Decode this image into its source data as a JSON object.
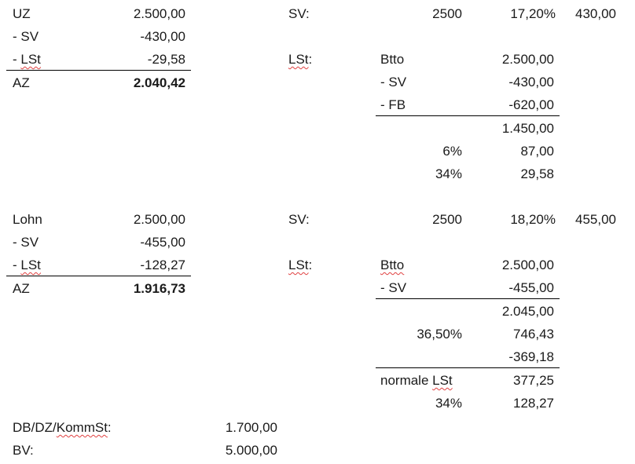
{
  "block1": {
    "left": {
      "rows": [
        {
          "label": "UZ",
          "value": "2.500,00"
        },
        {
          "label": "- SV",
          "value": "-430,00"
        },
        {
          "label": "- LSt",
          "value": "-29,58"
        },
        {
          "label": "AZ",
          "value": "2.040,42"
        }
      ]
    },
    "sv": {
      "label": "SV:",
      "base": "2500",
      "rate": "17,20%",
      "amount": "430,00"
    },
    "lst": {
      "label": "LSt:",
      "rows": [
        {
          "label": "Btto",
          "value": "2.500,00"
        },
        {
          "label": "- SV",
          "value": "-430,00"
        },
        {
          "label": "- FB",
          "value": "-620,00"
        },
        {
          "label": "",
          "value": "1.450,00"
        },
        {
          "label": "6%",
          "value": "87,00"
        },
        {
          "label": "34%",
          "value": "29,58"
        }
      ]
    }
  },
  "block2": {
    "left": {
      "rows": [
        {
          "label": "Lohn",
          "value": "2.500,00"
        },
        {
          "label": "- SV",
          "value": "-455,00"
        },
        {
          "label": "- LSt",
          "value": "-128,27"
        },
        {
          "label": "AZ",
          "value": "1.916,73"
        }
      ]
    },
    "sv": {
      "label": "SV:",
      "base": "2500",
      "rate": "18,20%",
      "amount": "455,00"
    },
    "lst": {
      "label": "LSt:",
      "rows": [
        {
          "label": "Btto",
          "value": "2.500,00"
        },
        {
          "label": "- SV",
          "value": "-455,00"
        },
        {
          "label": "",
          "value": "2.045,00"
        },
        {
          "label": "36,50%",
          "value": "746,43"
        },
        {
          "label": "",
          "value": "-369,18"
        },
        {
          "label": "normale LSt",
          "value": "377,25"
        },
        {
          "label": "34%",
          "value": "128,27"
        }
      ]
    }
  },
  "footer": {
    "rows": [
      {
        "label": "DB/DZ/KommSt:",
        "value": "1.700,00"
      },
      {
        "label": "BV:",
        "value": "5.000,00"
      }
    ]
  }
}
